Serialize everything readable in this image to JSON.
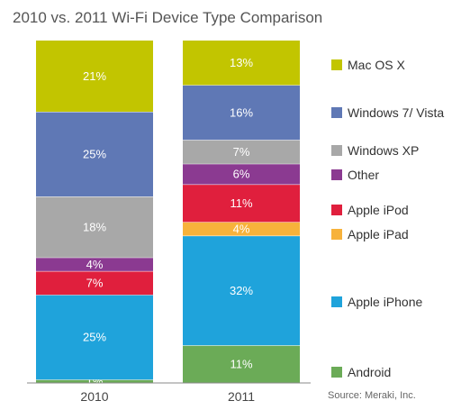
{
  "chart_data": {
    "type": "bar",
    "stacked": true,
    "title": "2010 vs. 2011 Wi-Fi Device Type Comparison",
    "source": "Source: Meraki, Inc.",
    "categories": [
      "2010",
      "2011"
    ],
    "unit": "%",
    "series": [
      {
        "name": "Android",
        "color": "#6bab57",
        "values": [
          1,
          11
        ]
      },
      {
        "name": "Apple iPhone",
        "color": "#1fa3db",
        "values": [
          25,
          32
        ]
      },
      {
        "name": "Apple iPad",
        "color": "#f7b23b",
        "values": [
          0,
          4
        ]
      },
      {
        "name": "Apple iPod",
        "color": "#e01f3d",
        "values": [
          7,
          11
        ]
      },
      {
        "name": "Other",
        "color": "#8b3a91",
        "values": [
          4,
          6
        ]
      },
      {
        "name": "Windows XP",
        "color": "#a8a8a8",
        "values": [
          18,
          7
        ]
      },
      {
        "name": "Windows 7/ Vista",
        "color": "#5f78b5",
        "values": [
          25,
          16
        ]
      },
      {
        "name": "Mac OS X",
        "color": "#c2c500",
        "values": [
          21,
          13
        ]
      }
    ],
    "legend": {
      "position": "right"
    },
    "grid": false
  }
}
